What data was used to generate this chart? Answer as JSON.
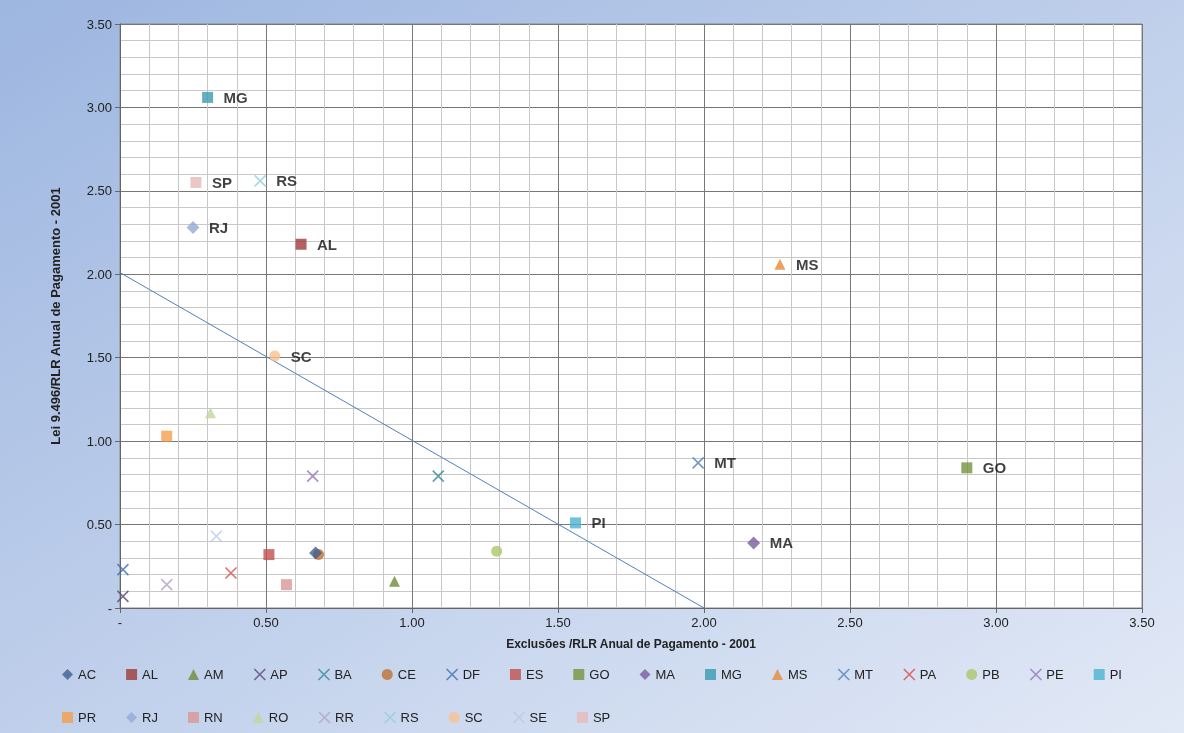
{
  "chart_data": {
    "type": "scatter",
    "xlabel": "Exclusões /RLR Anual de Pagamento - 2001",
    "ylabel": "Lei 9.496/RLR Anual de Pagamento - 2001",
    "xlim": [
      0,
      3.5
    ],
    "xticks": [
      {
        "value": 0,
        "label": "-"
      },
      {
        "value": 0.5,
        "label": "0.50"
      },
      {
        "value": 1,
        "label": "1.00"
      },
      {
        "value": 1.5,
        "label": "1.50"
      },
      {
        "value": 2,
        "label": "2.00"
      },
      {
        "value": 2.5,
        "label": "2.50"
      },
      {
        "value": 3,
        "label": "3.00"
      },
      {
        "value": 3.5,
        "label": "3.50"
      }
    ],
    "ylim": [
      0,
      3.5
    ],
    "yticks": [
      {
        "value": 0,
        "label": "-"
      },
      {
        "value": 0.5,
        "label": "0.50"
      },
      {
        "value": 1,
        "label": "1.00"
      },
      {
        "value": 1.5,
        "label": "1.50"
      },
      {
        "value": 2,
        "label": "2.00"
      },
      {
        "value": 2.5,
        "label": "2.50"
      },
      {
        "value": 3,
        "label": "3.00"
      },
      {
        "value": 3.5,
        "label": "3.50"
      }
    ],
    "grid": true,
    "legend": "bottom",
    "series": [
      {
        "name": "AC",
        "color": "#3e5f8f",
        "marker": "diamond",
        "x": [
          0.67
        ],
        "values": [
          0.33
        ]
      },
      {
        "name": "AL",
        "color": "#9e3b3a",
        "marker": "square",
        "x": [
          0.62
        ],
        "values": [
          2.18
        ]
      },
      {
        "name": "AM",
        "color": "#6f8b3a",
        "marker": "triangle",
        "x": [
          0.94
        ],
        "values": [
          0.16
        ]
      },
      {
        "name": "AP",
        "color": "#5b467a",
        "marker": "cross",
        "x": [
          0.01
        ],
        "values": [
          0.07
        ]
      },
      {
        "name": "BA",
        "color": "#35889a",
        "marker": "cross",
        "x": [
          1.09
        ],
        "values": [
          0.79
        ]
      },
      {
        "name": "CE",
        "color": "#c0702f",
        "marker": "circle",
        "x": [
          0.68
        ],
        "values": [
          0.32
        ]
      },
      {
        "name": "DF",
        "color": "#3d6eb4",
        "marker": "cross",
        "x": [
          0.01
        ],
        "values": [
          0.23
        ]
      },
      {
        "name": "ES",
        "color": "#c0504d",
        "marker": "square",
        "x": [
          0.51
        ],
        "values": [
          0.32
        ]
      },
      {
        "name": "GO",
        "color": "#77933c",
        "marker": "square",
        "x": [
          2.9
        ],
        "values": [
          0.84
        ]
      },
      {
        "name": "MA",
        "color": "#7a5c9e",
        "marker": "diamond",
        "x": [
          2.17
        ],
        "values": [
          0.39
        ]
      },
      {
        "name": "MG",
        "color": "#3a9bb0",
        "marker": "square",
        "x": [
          0.3
        ],
        "values": [
          3.06
        ]
      },
      {
        "name": "MS",
        "color": "#e8883a",
        "marker": "triangle",
        "x": [
          2.26
        ],
        "values": [
          2.06
        ]
      },
      {
        "name": "MT",
        "color": "#4f81bd",
        "marker": "cross",
        "x": [
          1.98
        ],
        "values": [
          0.87
        ]
      },
      {
        "name": "PA",
        "color": "#d94a47",
        "marker": "cross",
        "x": [
          0.38
        ],
        "values": [
          0.21
        ]
      },
      {
        "name": "PB",
        "color": "#a9c868",
        "marker": "circle",
        "x": [
          1.29
        ],
        "values": [
          0.34
        ]
      },
      {
        "name": "PE",
        "color": "#9274b8",
        "marker": "cross",
        "x": [
          0.66
        ],
        "values": [
          0.79
        ]
      },
      {
        "name": "PI",
        "color": "#4bb3d0",
        "marker": "square",
        "x": [
          1.56
        ],
        "values": [
          0.51
        ]
      },
      {
        "name": "PR",
        "color": "#f59d4c",
        "marker": "square",
        "x": [
          0.16
        ],
        "values": [
          1.03
        ]
      },
      {
        "name": "RJ",
        "color": "#95a9d6",
        "marker": "diamond",
        "x": [
          0.25
        ],
        "values": [
          2.28
        ]
      },
      {
        "name": "RN",
        "color": "#d99694",
        "marker": "square",
        "x": [
          0.57
        ],
        "values": [
          0.14
        ]
      },
      {
        "name": "RO",
        "color": "#c3d69b",
        "marker": "triangle",
        "x": [
          0.31
        ],
        "values": [
          1.17
        ]
      },
      {
        "name": "RR",
        "color": "#b3a2c7",
        "marker": "cross",
        "x": [
          0.16
        ],
        "values": [
          0.14
        ]
      },
      {
        "name": "RS",
        "color": "#93cddd",
        "marker": "cross",
        "x": [
          0.48
        ],
        "values": [
          2.56
        ]
      },
      {
        "name": "SC",
        "color": "#fac090",
        "marker": "circle",
        "x": [
          0.53
        ],
        "values": [
          1.51
        ]
      },
      {
        "name": "SE",
        "color": "#b9c8e4",
        "marker": "cross",
        "x": [
          0.33
        ],
        "values": [
          0.43
        ]
      },
      {
        "name": "SP",
        "color": "#e6b9b8",
        "marker": "square",
        "x": [
          0.26
        ],
        "values": [
          2.55
        ]
      },
      {
        "type": "line",
        "color": "#4f81bd",
        "marker": "none",
        "line_style": "solid",
        "x": [
          0,
          2.0
        ],
        "values": [
          2.01,
          0
        ]
      }
    ],
    "annotations": [
      {
        "text": "MG",
        "x": 0.3,
        "y": 3.06
      },
      {
        "text": "SP",
        "x": 0.26,
        "y": 2.55
      },
      {
        "text": "RS",
        "x": 0.48,
        "y": 2.56
      },
      {
        "text": "RJ",
        "x": 0.25,
        "y": 2.28
      },
      {
        "text": "AL",
        "x": 0.62,
        "y": 2.18
      },
      {
        "text": "MS",
        "x": 2.26,
        "y": 2.06
      },
      {
        "text": "SC",
        "x": 0.53,
        "y": 1.51
      },
      {
        "text": "MT",
        "x": 1.98,
        "y": 0.87
      },
      {
        "text": "GO",
        "x": 2.9,
        "y": 0.84
      },
      {
        "text": "PI",
        "x": 1.56,
        "y": 0.51
      },
      {
        "text": "MA",
        "x": 2.17,
        "y": 0.39
      }
    ]
  }
}
